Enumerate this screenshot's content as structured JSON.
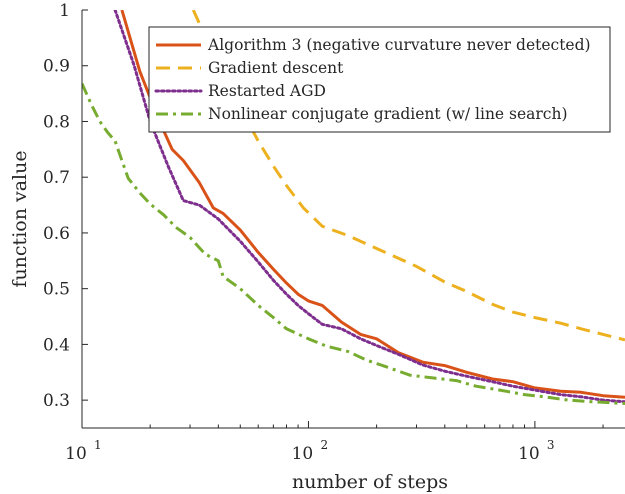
{
  "chart_data": {
    "type": "line",
    "xlabel": "number of steps",
    "ylabel": "function value",
    "xscale": "log",
    "xlim": [
      10,
      2500
    ],
    "ylim": [
      0.25,
      1
    ],
    "grid": false,
    "legend_position": "top-right",
    "x_ticks": [
      {
        "value": 10,
        "base": "10",
        "exp": "1"
      },
      {
        "value": 100,
        "base": "10",
        "exp": "2"
      },
      {
        "value": 1000,
        "base": "10",
        "exp": "3"
      }
    ],
    "y_ticks": [
      {
        "value": 0.3,
        "label": "0.3"
      },
      {
        "value": 0.4,
        "label": "0.4"
      },
      {
        "value": 0.5,
        "label": "0.5"
      },
      {
        "value": 0.6,
        "label": "0.6"
      },
      {
        "value": 0.7,
        "label": "0.7"
      },
      {
        "value": 0.8,
        "label": "0.8"
      },
      {
        "value": 0.9,
        "label": "0.9"
      },
      {
        "value": 1,
        "label": "1"
      }
    ],
    "series": [
      {
        "name": "Algorithm 3 (negative curvature never detected)",
        "color": "#d95319",
        "dash": "solid",
        "points": [
          [
            15,
            1.0
          ],
          [
            18,
            0.89
          ],
          [
            22,
            0.8
          ],
          [
            25,
            0.75
          ],
          [
            28,
            0.73
          ],
          [
            33,
            0.69
          ],
          [
            38,
            0.645
          ],
          [
            42,
            0.635
          ],
          [
            50,
            0.605
          ],
          [
            60,
            0.565
          ],
          [
            70,
            0.535
          ],
          [
            80,
            0.51
          ],
          [
            90,
            0.49
          ],
          [
            100,
            0.478
          ],
          [
            115,
            0.47
          ],
          [
            140,
            0.44
          ],
          [
            170,
            0.418
          ],
          [
            200,
            0.41
          ],
          [
            250,
            0.385
          ],
          [
            320,
            0.368
          ],
          [
            400,
            0.362
          ],
          [
            500,
            0.35
          ],
          [
            650,
            0.338
          ],
          [
            800,
            0.333
          ],
          [
            1000,
            0.322
          ],
          [
            1300,
            0.316
          ],
          [
            1600,
            0.314
          ],
          [
            2000,
            0.308
          ],
          [
            2500,
            0.305
          ]
        ]
      },
      {
        "name": "Gradient descent",
        "color": "#edb120",
        "dash": "dashed",
        "points": [
          [
            31,
            1.0
          ],
          [
            40,
            0.9
          ],
          [
            50,
            0.825
          ],
          [
            60,
            0.765
          ],
          [
            70,
            0.72
          ],
          [
            80,
            0.685
          ],
          [
            95,
            0.645
          ],
          [
            115,
            0.612
          ],
          [
            150,
            0.595
          ],
          [
            200,
            0.572
          ],
          [
            300,
            0.54
          ],
          [
            400,
            0.512
          ],
          [
            500,
            0.495
          ],
          [
            650,
            0.472
          ],
          [
            800,
            0.458
          ],
          [
            1000,
            0.448
          ],
          [
            1300,
            0.438
          ],
          [
            1600,
            0.428
          ],
          [
            2000,
            0.418
          ],
          [
            2500,
            0.408
          ]
        ]
      },
      {
        "name": "Restarted AGD",
        "color": "#7e2f8e",
        "dash": "dotted",
        "points": [
          [
            14,
            1.0
          ],
          [
            17,
            0.9
          ],
          [
            20,
            0.8
          ],
          [
            24,
            0.72
          ],
          [
            28,
            0.658
          ],
          [
            33,
            0.65
          ],
          [
            40,
            0.625
          ],
          [
            50,
            0.585
          ],
          [
            60,
            0.548
          ],
          [
            70,
            0.515
          ],
          [
            80,
            0.49
          ],
          [
            90,
            0.47
          ],
          [
            100,
            0.455
          ],
          [
            115,
            0.436
          ],
          [
            140,
            0.428
          ],
          [
            170,
            0.41
          ],
          [
            200,
            0.398
          ],
          [
            250,
            0.382
          ],
          [
            320,
            0.363
          ],
          [
            400,
            0.352
          ],
          [
            500,
            0.343
          ],
          [
            650,
            0.333
          ],
          [
            800,
            0.325
          ],
          [
            1000,
            0.318
          ],
          [
            1300,
            0.31
          ],
          [
            1600,
            0.306
          ],
          [
            2000,
            0.3
          ],
          [
            2500,
            0.297
          ]
        ]
      },
      {
        "name": "Nonlinear conjugate gradient (w/ line search)",
        "color": "#77ac30",
        "dash": "dashdot",
        "points": [
          [
            10,
            0.868
          ],
          [
            11,
            0.83
          ],
          [
            12,
            0.8
          ],
          [
            13,
            0.78
          ],
          [
            14,
            0.765
          ],
          [
            15,
            0.73
          ],
          [
            16,
            0.698
          ],
          [
            18,
            0.672
          ],
          [
            20,
            0.652
          ],
          [
            23,
            0.632
          ],
          [
            26,
            0.61
          ],
          [
            30,
            0.592
          ],
          [
            35,
            0.562
          ],
          [
            40,
            0.55
          ],
          [
            42,
            0.522
          ],
          [
            50,
            0.5
          ],
          [
            60,
            0.47
          ],
          [
            70,
            0.448
          ],
          [
            80,
            0.428
          ],
          [
            100,
            0.41
          ],
          [
            120,
            0.397
          ],
          [
            150,
            0.387
          ],
          [
            180,
            0.372
          ],
          [
            220,
            0.36
          ],
          [
            280,
            0.345
          ],
          [
            350,
            0.34
          ],
          [
            450,
            0.335
          ],
          [
            550,
            0.325
          ],
          [
            700,
            0.318
          ],
          [
            900,
            0.31
          ],
          [
            1100,
            0.306
          ],
          [
            1400,
            0.3
          ],
          [
            1800,
            0.297
          ],
          [
            2500,
            0.294
          ]
        ]
      }
    ]
  }
}
